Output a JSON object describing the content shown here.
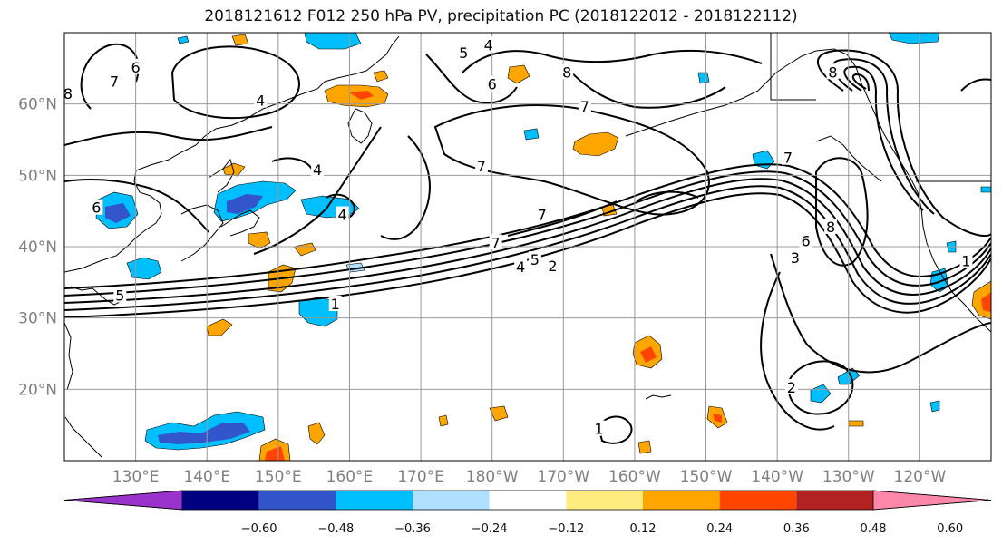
{
  "title": "2018121612 F012 250 hPa PV, precipitation PC (2018122012 - 2018122112)",
  "map": {
    "projection": "equirectangular",
    "lon_range": [
      120,
      250
    ],
    "lat_range": [
      10,
      70
    ],
    "gridlines": true,
    "longitude_ticks": [
      {
        "value": 130,
        "label": "130°E"
      },
      {
        "value": 140,
        "label": "140°E"
      },
      {
        "value": 150,
        "label": "150°E"
      },
      {
        "value": 160,
        "label": "160°E"
      },
      {
        "value": 170,
        "label": "170°E"
      },
      {
        "value": 180,
        "label": "180°W"
      },
      {
        "value": 190,
        "label": "170°W"
      },
      {
        "value": 200,
        "label": "160°W"
      },
      {
        "value": 210,
        "label": "150°W"
      },
      {
        "value": 220,
        "label": "140°W"
      },
      {
        "value": 230,
        "label": "130°W"
      },
      {
        "value": 240,
        "label": "120°W"
      }
    ],
    "latitude_ticks": [
      {
        "value": 20,
        "label": "20°N"
      },
      {
        "value": 30,
        "label": "30°N"
      },
      {
        "value": 40,
        "label": "40°N"
      },
      {
        "value": 50,
        "label": "50°N"
      },
      {
        "value": 60,
        "label": "60°N"
      }
    ],
    "contour_labels": [
      {
        "text": "1",
        "lon": 158,
        "lat": 32
      },
      {
        "text": "2",
        "lon": 188.5,
        "lat": 37.3
      },
      {
        "text": "4",
        "lon": 184,
        "lat": 37.2
      },
      {
        "text": "5",
        "lon": 186,
        "lat": 38.2
      },
      {
        "text": "7",
        "lon": 180.5,
        "lat": 40.6
      },
      {
        "text": "7",
        "lon": 187,
        "lat": 44.5
      },
      {
        "text": "7",
        "lon": 193,
        "lat": 59.7
      },
      {
        "text": "7",
        "lon": 221.5,
        "lat": 52.5
      },
      {
        "text": "7",
        "lon": 178.5,
        "lat": 51.3
      },
      {
        "text": "4",
        "lon": 155.5,
        "lat": 50.8
      },
      {
        "text": "4",
        "lon": 159,
        "lat": 44.5
      },
      {
        "text": "4",
        "lon": 147.5,
        "lat": 60.5
      },
      {
        "text": "4",
        "lon": 179.5,
        "lat": 68.3
      },
      {
        "text": "5",
        "lon": 176,
        "lat": 67.2
      },
      {
        "text": "6",
        "lon": 180,
        "lat": 62.8
      },
      {
        "text": "8",
        "lon": 190.5,
        "lat": 64.5
      },
      {
        "text": "6",
        "lon": 130,
        "lat": 65.2
      },
      {
        "text": "7",
        "lon": 127,
        "lat": 63.2
      },
      {
        "text": "8",
        "lon": 120.5,
        "lat": 61.5
      },
      {
        "text": "6",
        "lon": 124.5,
        "lat": 45.5
      },
      {
        "text": "5",
        "lon": 127.8,
        "lat": 33.2
      },
      {
        "text": "8",
        "lon": 227.5,
        "lat": 42.8
      },
      {
        "text": "6",
        "lon": 224,
        "lat": 40.8
      },
      {
        "text": "3",
        "lon": 222.5,
        "lat": 38.5
      },
      {
        "text": "2",
        "lon": 222,
        "lat": 20.3
      },
      {
        "text": "1",
        "lon": 195,
        "lat": 14.5
      },
      {
        "text": "8",
        "lon": 227.8,
        "lat": 64.5
      },
      {
        "text": "1",
        "lon": 246.5,
        "lat": 38
      }
    ]
  },
  "colorbar": {
    "extend": "both",
    "colors": [
      "#9933cc",
      "#000080",
      "#3355cc",
      "#00bfff",
      "#b0e0ff",
      "#ffffff",
      "#ffec80",
      "#ffa500",
      "#ff4500",
      "#b22222",
      "#ff88aa"
    ],
    "ticks": [
      "−0.60",
      "−0.48",
      "−0.36",
      "−0.24",
      "−0.12",
      "0.12",
      "0.24",
      "0.36",
      "0.48",
      "0.60"
    ]
  }
}
